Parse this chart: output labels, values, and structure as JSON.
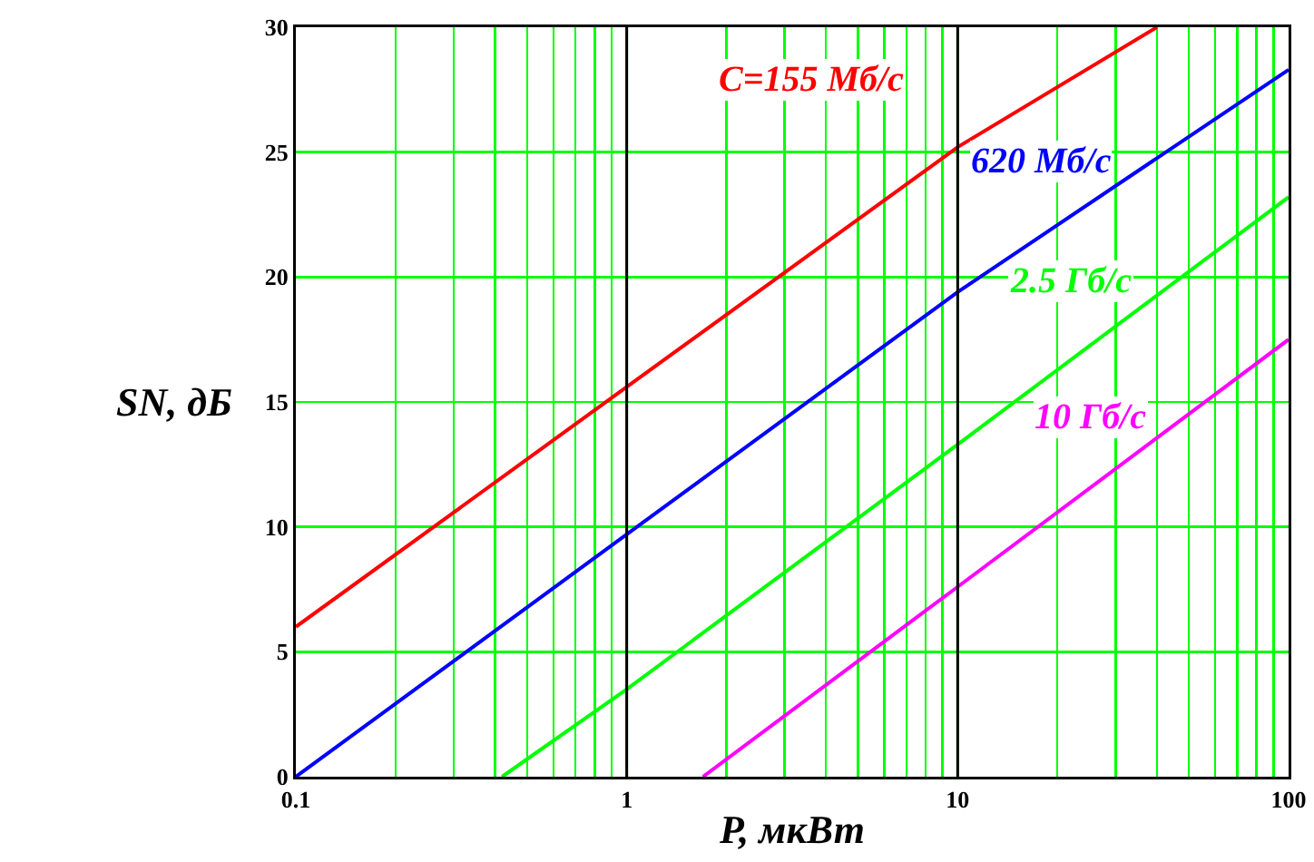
{
  "chart_data": {
    "type": "line",
    "xlabel": "P, мкВт",
    "ylabel": "SN, дБ",
    "log": "x",
    "grid": true,
    "legend": false,
    "marker": "none",
    "line_style": "solid",
    "xlim": [
      0.1,
      100
    ],
    "ylim": [
      0,
      30
    ],
    "xticks": [
      0.1,
      {
        "value": 0.2,
        "label": null
      },
      {
        "value": 0.3,
        "label": null
      },
      {
        "value": 0.4,
        "label": null
      },
      {
        "value": 0.5,
        "label": null
      },
      {
        "value": 0.6,
        "label": null
      },
      {
        "value": 0.7,
        "label": null
      },
      {
        "value": 0.8,
        "label": null
      },
      {
        "value": 0.9,
        "label": null
      },
      1,
      {
        "value": 2,
        "label": null
      },
      {
        "value": 3,
        "label": null
      },
      {
        "value": 4,
        "label": null
      },
      {
        "value": 5,
        "label": null
      },
      {
        "value": 6,
        "label": null
      },
      {
        "value": 7,
        "label": null
      },
      {
        "value": 8,
        "label": null
      },
      {
        "value": 9,
        "label": null
      },
      10,
      {
        "value": 20,
        "label": null
      },
      {
        "value": 30,
        "label": null
      },
      {
        "value": 40,
        "label": null
      },
      {
        "value": 50,
        "label": null
      },
      {
        "value": 60,
        "label": null
      },
      {
        "value": 70,
        "label": null
      },
      {
        "value": 80,
        "label": null
      },
      {
        "value": 90,
        "label": null
      },
      100
    ],
    "yticks": [
      0,
      5,
      10,
      15,
      20,
      25,
      30
    ],
    "series": [
      {
        "name": "C=155 Мб/с",
        "color": "#ff0000",
        "x": [
          0.1,
          1,
          10,
          40
        ],
        "values": [
          6,
          15.6,
          25.2,
          30
        ]
      },
      {
        "name": "620 Мб/с",
        "color": "#0000ff",
        "x": [
          0.1,
          1,
          10,
          100
        ],
        "values": [
          0,
          9.7,
          19.4,
          28.3
        ]
      },
      {
        "name": "2.5 Гб/с",
        "color": "#00ff00",
        "x": [
          0.42,
          1,
          10,
          100
        ],
        "values": [
          0,
          3.5,
          13.3,
          23.2
        ]
      },
      {
        "name": "10 Гб/с",
        "color": "#ff00ff",
        "x": [
          1.7,
          10,
          100
        ],
        "values": [
          0,
          7.6,
          17.5
        ]
      }
    ]
  }
}
